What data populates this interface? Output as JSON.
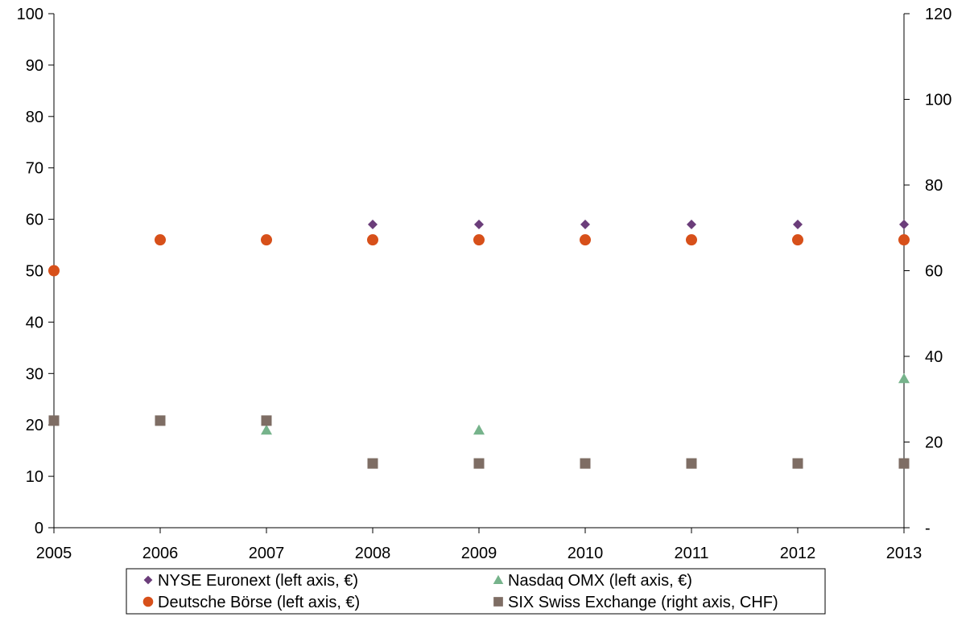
{
  "chart_data": {
    "type": "scatter",
    "x": [
      2005,
      2006,
      2007,
      2008,
      2009,
      2010,
      2011,
      2012,
      2013
    ],
    "left_axis": {
      "ylim": [
        0,
        100
      ],
      "ticks": [
        "0",
        "10",
        "20",
        "30",
        "40",
        "50",
        "60",
        "70",
        "80",
        "90",
        "100"
      ]
    },
    "right_axis": {
      "ylim": [
        0,
        120
      ],
      "ticks": [
        "-",
        "20",
        "40",
        "60",
        "80",
        "100",
        "120"
      ]
    },
    "x_ticks": [
      "2005",
      "2006",
      "2007",
      "2008",
      "2009",
      "2010",
      "2011",
      "2012",
      "2013"
    ],
    "grid": false,
    "legend_position": "bottom",
    "series": [
      {
        "name": "NYSE Euronext (left axis, €)",
        "axis": "left",
        "marker": "diamond",
        "color": "#6B3D7A",
        "values": [
          null,
          null,
          null,
          59,
          59,
          59,
          59,
          59,
          59
        ]
      },
      {
        "name": "Nasdaq OMX (left axis, €)",
        "axis": "left",
        "marker": "triangle",
        "color": "#76B38B",
        "values": [
          null,
          null,
          19,
          null,
          19,
          null,
          null,
          null,
          29
        ]
      },
      {
        "name": "Deutsche Börse (left axis, €)",
        "axis": "left",
        "marker": "circle",
        "color": "#D7501A",
        "values": [
          50,
          56,
          56,
          56,
          56,
          56,
          56,
          56,
          56
        ]
      },
      {
        "name": "SIX Swiss Exchange (right axis, CHF)",
        "axis": "right",
        "marker": "square",
        "color": "#7E6D64",
        "values": [
          25,
          25,
          25,
          15,
          15,
          15,
          15,
          15,
          15
        ]
      }
    ]
  }
}
